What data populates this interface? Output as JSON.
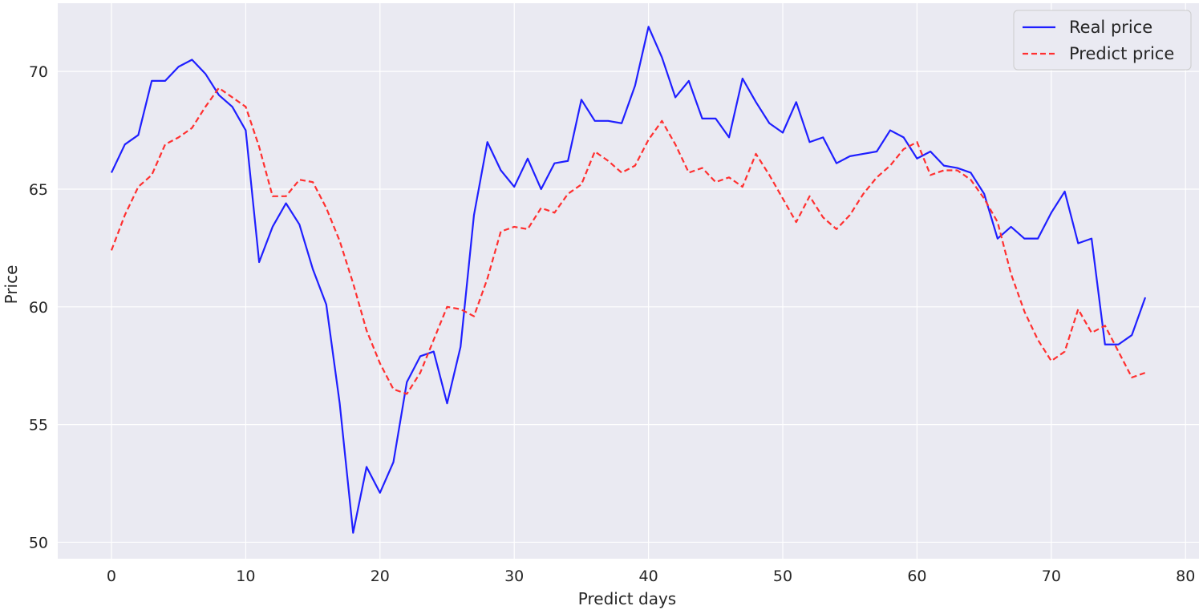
{
  "chart_data": {
    "type": "line",
    "title": "",
    "xlabel": "Predict days",
    "ylabel": "Price",
    "xlim": [
      -4,
      81
    ],
    "ylim": [
      49.3,
      72.9
    ],
    "xticks": [
      0,
      10,
      20,
      30,
      40,
      50,
      60,
      70,
      80
    ],
    "yticks": [
      50,
      55,
      60,
      65,
      70
    ],
    "grid": true,
    "legend_position": "upper right",
    "x": [
      0,
      1,
      2,
      3,
      4,
      5,
      6,
      7,
      8,
      9,
      10,
      11,
      12,
      13,
      14,
      15,
      16,
      17,
      18,
      19,
      20,
      21,
      22,
      23,
      24,
      25,
      26,
      27,
      28,
      29,
      30,
      31,
      32,
      33,
      34,
      35,
      36,
      37,
      38,
      39,
      40,
      41,
      42,
      43,
      44,
      45,
      46,
      47,
      48,
      49,
      50,
      51,
      52,
      53,
      54,
      55,
      56,
      57,
      58,
      59,
      60,
      61,
      62,
      63,
      64,
      65,
      66,
      67,
      68,
      69,
      70,
      71,
      72,
      73,
      74,
      75,
      76,
      77
    ],
    "series": [
      {
        "name": "Real price",
        "color": "#1f1fff",
        "style": "solid",
        "values": [
          65.7,
          66.9,
          67.3,
          69.6,
          69.6,
          70.2,
          70.5,
          69.9,
          69.0,
          68.5,
          67.5,
          61.9,
          63.4,
          64.4,
          63.5,
          61.6,
          60.1,
          55.9,
          50.4,
          53.2,
          52.1,
          53.4,
          56.8,
          57.9,
          58.1,
          55.9,
          58.3,
          63.9,
          67.0,
          65.8,
          65.1,
          66.3,
          65.0,
          66.1,
          66.2,
          68.8,
          67.9,
          67.9,
          67.8,
          69.4,
          71.9,
          70.6,
          68.9,
          69.6,
          68.0,
          68.0,
          67.2,
          69.7,
          68.7,
          67.8,
          67.4,
          68.7,
          67.0,
          67.2,
          66.1,
          66.4,
          66.5,
          66.6,
          67.5,
          67.2,
          66.3,
          66.6,
          66.0,
          65.9,
          65.7,
          64.8,
          62.9,
          63.4,
          62.9,
          62.9,
          64.0,
          64.9,
          62.7,
          62.9,
          58.4,
          58.4,
          58.8,
          60.4
        ]
      },
      {
        "name": "Predict price",
        "color": "#ff3030",
        "style": "dashed",
        "values": [
          62.4,
          63.9,
          65.1,
          65.6,
          66.9,
          67.2,
          67.6,
          68.5,
          69.3,
          68.9,
          68.5,
          66.8,
          64.7,
          64.7,
          65.4,
          65.3,
          64.2,
          62.8,
          61.0,
          59.0,
          57.6,
          56.5,
          56.3,
          57.2,
          58.6,
          60.0,
          59.9,
          59.6,
          61.2,
          63.2,
          63.4,
          63.3,
          64.2,
          64.0,
          64.8,
          65.2,
          66.6,
          66.2,
          65.7,
          66.0,
          67.1,
          67.9,
          66.9,
          65.7,
          65.9,
          65.3,
          65.5,
          65.1,
          66.5,
          65.6,
          64.6,
          63.6,
          64.7,
          63.8,
          63.3,
          63.9,
          64.8,
          65.5,
          66.0,
          66.7,
          67.0,
          65.6,
          65.8,
          65.8,
          65.4,
          64.6,
          63.6,
          61.4,
          59.8,
          58.6,
          57.7,
          58.1,
          59.9,
          58.9,
          59.2,
          58.1,
          57.0,
          57.2
        ]
      }
    ]
  }
}
